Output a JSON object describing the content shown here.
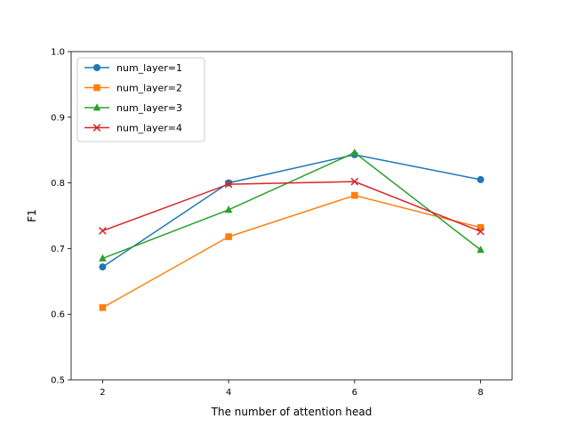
{
  "chart_data": {
    "type": "line",
    "title": "",
    "xlabel": "The number of attention head",
    "ylabel": "F1",
    "x": [
      2,
      4,
      6,
      8
    ],
    "xlim": [
      1.5,
      8.5
    ],
    "ylim": [
      0.5,
      1.0
    ],
    "xticks": [
      "2",
      "4",
      "6",
      "8"
    ],
    "yticks": [
      "0.5",
      "0.6",
      "0.7",
      "0.8",
      "0.9",
      "1.0"
    ],
    "grid": false,
    "legend_position": "top-left",
    "series": [
      {
        "name": "num_layer=1",
        "color": "#1f77b4",
        "marker": "circle",
        "values": [
          0.672,
          0.8,
          0.843,
          0.805
        ]
      },
      {
        "name": "num_layer=2",
        "color": "#ff7f0e",
        "marker": "square",
        "values": [
          0.61,
          0.718,
          0.781,
          0.732
        ]
      },
      {
        "name": "num_layer=3",
        "color": "#2ca02c",
        "marker": "triangle",
        "values": [
          0.685,
          0.759,
          0.846,
          0.698
        ]
      },
      {
        "name": "num_layer=4",
        "color": "#d62728",
        "marker": "x",
        "values": [
          0.727,
          0.798,
          0.802,
          0.726
        ]
      }
    ]
  }
}
